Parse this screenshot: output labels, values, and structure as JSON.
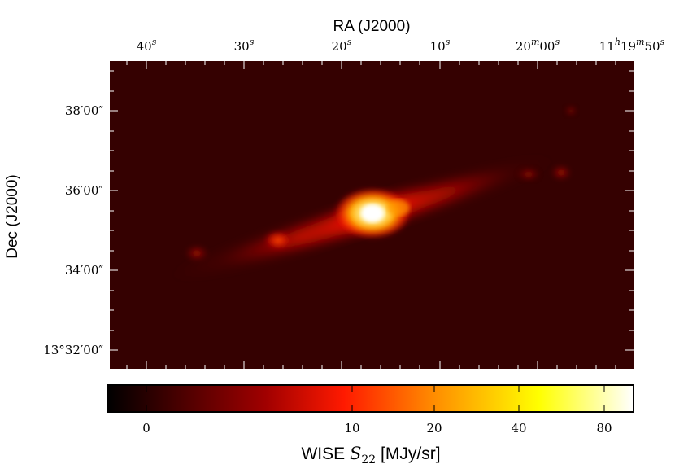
{
  "figure": {
    "xlabel": "RA (J2000)",
    "ylabel": "Dec (J2000)",
    "colorbar_label": "WISE S22 [MJy/sr]",
    "colorbar_label_main": "WISE ",
    "colorbar_label_sym": "S",
    "colorbar_label_sub": "22",
    "colorbar_label_unit": " [MJy/sr]",
    "ra_ticks": [
      {
        "base": "40",
        "sup": "s"
      },
      {
        "base": "30",
        "sup": "s"
      },
      {
        "base": "20",
        "sup": "s"
      },
      {
        "base": "10",
        "sup": "s"
      },
      {
        "base": "20",
        "sup": "m",
        "base2": "00",
        "sup2": "s"
      },
      {
        "base": "11",
        "sup": "h",
        "base2": "19",
        "sup2": "m",
        "base3": "50",
        "sup3": "s"
      }
    ],
    "dec_ticks": [
      "38′00″",
      "36′00″",
      "34′00″",
      "13°32′00″"
    ],
    "colorbar_ticks": [
      "0",
      "10",
      "20",
      "40",
      "80"
    ],
    "colormap": "hot",
    "colors": {
      "background": "#330000",
      "core": "#ffffff",
      "hot": "#ffd400",
      "mid": "#ff2a00"
    }
  }
}
